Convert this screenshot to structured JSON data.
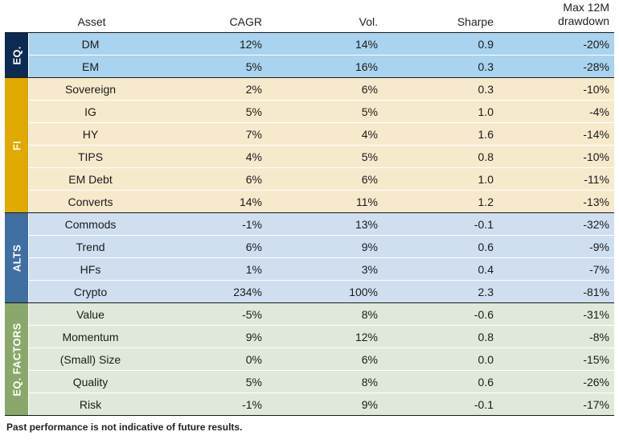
{
  "header": {
    "asset": "Asset",
    "cagr": "CAGR",
    "vol": "Vol.",
    "sharpe": "Sharpe",
    "mdd_line1": "Max 12M",
    "mdd_line2": "drawdown"
  },
  "groups": [
    {
      "label": "EQ.",
      "color": "#0d2a52",
      "row_color": "#a9d3ee",
      "rows": [
        {
          "asset": "DM",
          "cagr": "12%",
          "vol": "14%",
          "sharpe": "0.9",
          "mdd": "-20%"
        },
        {
          "asset": "EM",
          "cagr": "5%",
          "vol": "16%",
          "sharpe": "0.3",
          "mdd": "-28%"
        }
      ]
    },
    {
      "label": "FI",
      "color": "#e1a800",
      "row_color": "#f7e9cc",
      "rows": [
        {
          "asset": "Sovereign",
          "cagr": "2%",
          "vol": "6%",
          "sharpe": "0.3",
          "mdd": "-10%"
        },
        {
          "asset": "IG",
          "cagr": "5%",
          "vol": "5%",
          "sharpe": "1.0",
          "mdd": "-4%"
        },
        {
          "asset": "HY",
          "cagr": "7%",
          "vol": "4%",
          "sharpe": "1.6",
          "mdd": "-14%"
        },
        {
          "asset": "TIPS",
          "cagr": "4%",
          "vol": "5%",
          "sharpe": "0.8",
          "mdd": "-10%"
        },
        {
          "asset": "EM Debt",
          "cagr": "6%",
          "vol": "6%",
          "sharpe": "1.0",
          "mdd": "-11%"
        },
        {
          "asset": "Converts",
          "cagr": "14%",
          "vol": "11%",
          "sharpe": "1.2",
          "mdd": "-13%"
        }
      ]
    },
    {
      "label": "ALTS",
      "color": "#3f6fa3",
      "row_color": "#cfdff0",
      "rows": [
        {
          "asset": "Commods",
          "cagr": "-1%",
          "vol": "13%",
          "sharpe": "-0.1",
          "mdd": "-32%"
        },
        {
          "asset": "Trend",
          "cagr": "6%",
          "vol": "9%",
          "sharpe": "0.6",
          "mdd": "-9%"
        },
        {
          "asset": "HFs",
          "cagr": "1%",
          "vol": "3%",
          "sharpe": "0.4",
          "mdd": "-7%"
        },
        {
          "asset": "Crypto",
          "cagr": "234%",
          "vol": "100%",
          "sharpe": "2.3",
          "mdd": "-81%"
        }
      ]
    },
    {
      "label": "EQ. FACTORS",
      "color": "#8aa86b",
      "row_color": "#e0e9d9",
      "rows": [
        {
          "asset": "Value",
          "cagr": "-5%",
          "vol": "8%",
          "sharpe": "-0.6",
          "mdd": "-31%"
        },
        {
          "asset": "Momentum",
          "cagr": "9%",
          "vol": "12%",
          "sharpe": "0.8",
          "mdd": "-8%"
        },
        {
          "asset": "(Small) Size",
          "cagr": "0%",
          "vol": "6%",
          "sharpe": "0.0",
          "mdd": "-15%"
        },
        {
          "asset": "Quality",
          "cagr": "5%",
          "vol": "8%",
          "sharpe": "0.6",
          "mdd": "-26%"
        },
        {
          "asset": "Risk",
          "cagr": "-1%",
          "vol": "9%",
          "sharpe": "-0.1",
          "mdd": "-17%"
        }
      ]
    }
  ],
  "footnote": "Past performance is not indicative of future results."
}
